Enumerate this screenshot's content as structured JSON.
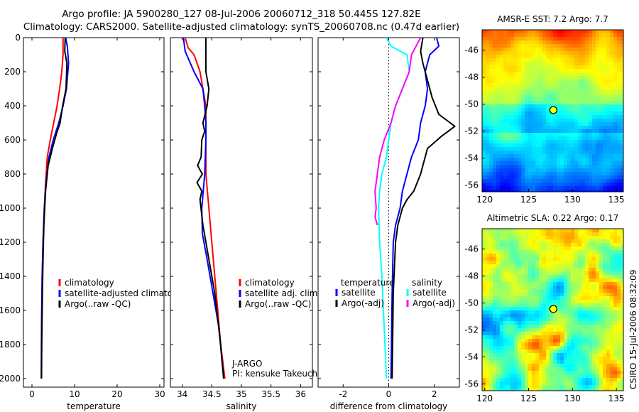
{
  "header": {
    "line1": "Argo profile: JA 5900280_127 08-Jul-2006 20060712_318 50.445S 127.82E",
    "line2": "Climatology: CARS2000. Satellite-adjusted climatology: synTS_20060708.nc (0.47d earlier)"
  },
  "side_label": "CSIRO 15-Jul-2006 08:32:09",
  "colors": {
    "climatology": "#ff0000",
    "satellite": "#0000ff",
    "argo": "#000000",
    "salinity_satellite": "#00ffff",
    "salinity_argo": "#ff00ff"
  },
  "chart_data": [
    {
      "type": "line",
      "id": "temperature",
      "xlabel": "temperature",
      "ylabel": "",
      "xlim": [
        -2,
        31
      ],
      "ylim": [
        2050,
        0
      ],
      "xticks": [
        "0",
        "10",
        "20",
        "30"
      ],
      "yticks": [
        "0",
        "200",
        "400",
        "600",
        "800",
        "1000",
        "1200",
        "1400",
        "1600",
        "1800",
        "2000"
      ],
      "legend": [
        "climatology",
        "satellite-adjusted climatology",
        "Argo(..raw -QC)"
      ],
      "series": [
        {
          "name": "climatology",
          "color": "#ff0000",
          "x": [
            7.3,
            7.3,
            7.0,
            6.5,
            5.9,
            5.1,
            4.3,
            3.6,
            3.2,
            2.9,
            2.6,
            2.4,
            2.25,
            2.2
          ],
          "y": [
            0,
            100,
            200,
            300,
            400,
            500,
            600,
            700,
            850,
            1000,
            1200,
            1400,
            1700,
            2000
          ]
        },
        {
          "name": "satellite-adjusted climatology",
          "color": "#0000ff",
          "x": [
            7.9,
            8.3,
            8.6,
            8.1,
            7.3,
            6.3,
            5.0,
            4.0,
            3.3,
            2.9,
            2.6,
            2.4,
            2.25,
            2.2
          ],
          "y": [
            0,
            50,
            150,
            300,
            400,
            500,
            600,
            700,
            850,
            1000,
            1200,
            1400,
            1700,
            2000
          ]
        },
        {
          "name": "Argo(..raw -QC)",
          "color": "#000000",
          "x": [
            7.8,
            7.7,
            8.2,
            8.0,
            7.2,
            6.6,
            5.8,
            4.8,
            3.8,
            3.2,
            2.8,
            2.6,
            2.45,
            2.3,
            2.25
          ],
          "y": [
            0,
            80,
            150,
            300,
            400,
            500,
            560,
            650,
            750,
            900,
            1100,
            1300,
            1500,
            1800,
            2000
          ]
        }
      ]
    },
    {
      "type": "line",
      "id": "salinity",
      "xlabel": "salinity",
      "xlim": [
        33.8,
        36.2
      ],
      "ylim": [
        2050,
        0
      ],
      "xticks": [
        "34",
        "34.5",
        "35",
        "35.5",
        "36"
      ],
      "legend": [
        "climatology",
        "satellite adj. clim.",
        "Argo(..raw -QC)"
      ],
      "annotations": [
        "J-ARGO",
        "PI: kensuke Takeuchi"
      ],
      "series": [
        {
          "name": "climatology",
          "color": "#ff0000",
          "x": [
            34.05,
            34.1,
            34.2,
            34.3,
            34.35,
            34.4,
            34.4,
            34.4,
            34.45,
            34.5,
            34.55,
            34.6,
            34.65,
            34.72
          ],
          "y": [
            0,
            60,
            100,
            200,
            300,
            400,
            600,
            800,
            1000,
            1200,
            1400,
            1600,
            1800,
            2000
          ]
        },
        {
          "name": "satellite adj. clim.",
          "color": "#0000ff",
          "x": [
            34.02,
            34.05,
            34.2,
            34.35,
            34.38,
            34.4,
            34.4,
            34.38,
            34.33,
            34.34,
            34.42,
            34.52,
            34.62,
            34.7
          ],
          "y": [
            0,
            80,
            200,
            300,
            400,
            500,
            600,
            800,
            1000,
            1150,
            1300,
            1500,
            1700,
            2000
          ]
        },
        {
          "name": "Argo(..raw -QC)",
          "color": "#000000",
          "x": [
            34.4,
            34.4,
            34.4,
            34.45,
            34.42,
            34.35,
            34.38,
            34.33,
            34.32,
            34.26,
            34.34,
            34.25,
            34.33,
            34.3,
            34.35,
            34.45,
            34.55,
            34.65,
            34.7
          ],
          "y": [
            0,
            50,
            200,
            300,
            400,
            500,
            550,
            600,
            700,
            750,
            800,
            850,
            900,
            950,
            1100,
            1300,
            1500,
            1800,
            2000
          ]
        }
      ]
    },
    {
      "type": "line",
      "id": "difference",
      "xlabel": "difference from climatology",
      "xlim": [
        -3.1,
        3.1
      ],
      "ylim": [
        2050,
        0
      ],
      "xticks": [
        "-2",
        "0",
        "2"
      ],
      "legend_headers": [
        "temperature",
        "salinity"
      ],
      "legend": [
        "satellite",
        "Argo(-adj)",
        "satellite",
        "Argo(-adj)"
      ],
      "series": [
        {
          "name": "temperature satellite",
          "color": "#0000ff",
          "x": [
            2.1,
            2.2,
            1.8,
            1.6,
            1.7,
            1.6,
            1.4,
            1.3,
            1.0,
            0.8,
            0.6,
            0.5,
            0.3,
            0.2,
            0.15,
            0.1
          ],
          "y": [
            0,
            50,
            100,
            200,
            300,
            400,
            500,
            600,
            700,
            800,
            900,
            1000,
            1100,
            1200,
            1500,
            2000
          ]
        },
        {
          "name": "temperature Argo(-adj)",
          "color": "#000000",
          "x": [
            1.5,
            1.4,
            1.5,
            1.7,
            1.9,
            2.2,
            2.9,
            2.3,
            1.7,
            1.5,
            1.4,
            1.1,
            0.8,
            0.6,
            0.4,
            0.3,
            0.2,
            0.15
          ],
          "y": [
            0,
            80,
            150,
            250,
            350,
            450,
            520,
            580,
            650,
            750,
            800,
            900,
            950,
            1000,
            1100,
            1200,
            1500,
            2000
          ]
        },
        {
          "name": "salinity satellite",
          "color": "#00ffff",
          "x": [
            -0.1,
            0.1,
            0.8,
            0.9,
            0.6,
            0.3,
            0.1,
            0.0,
            -0.1,
            -0.3,
            -0.4,
            -0.45,
            -0.4,
            -0.3,
            -0.2,
            -0.1
          ],
          "y": [
            0,
            50,
            100,
            200,
            300,
            400,
            500,
            600,
            700,
            800,
            900,
            1000,
            1200,
            1400,
            1700,
            2000
          ]
        },
        {
          "name": "salinity Argo(-adj)",
          "color": "#ff00ff",
          "x": [
            1.4,
            1.2,
            1.0,
            0.9,
            0.6,
            0.3,
            0.1,
            -0.2,
            -0.4,
            -0.5,
            -0.6,
            -0.55,
            -0.6,
            -0.5
          ],
          "y": [
            0,
            50,
            100,
            200,
            300,
            400,
            500,
            600,
            700,
            800,
            900,
            1000,
            1050,
            1100
          ]
        }
      ]
    },
    {
      "type": "heatmap",
      "id": "sst",
      "title": "AMSR-E SST: 7.2 Argo: 7.7",
      "xlim": [
        119.7,
        135.8
      ],
      "ylim": [
        -56.5,
        -44.5
      ],
      "xticks": [
        "120",
        "125",
        "130",
        "135"
      ],
      "yticks": [
        "-46",
        "-48",
        "-50",
        "-52",
        "-54",
        "-56"
      ],
      "marker": {
        "lon": 127.82,
        "lat": -50.445
      }
    },
    {
      "type": "heatmap",
      "id": "sla",
      "title": "Altimetric SLA: 0.22 Argo: 0.17",
      "xlim": [
        119.7,
        135.8
      ],
      "ylim": [
        -56.5,
        -44.5
      ],
      "xticks": [
        "120",
        "125",
        "130",
        "135"
      ],
      "yticks": [
        "-46",
        "-48",
        "-50",
        "-52",
        "-54",
        "-56"
      ],
      "marker": {
        "lon": 127.82,
        "lat": -50.445
      }
    }
  ]
}
